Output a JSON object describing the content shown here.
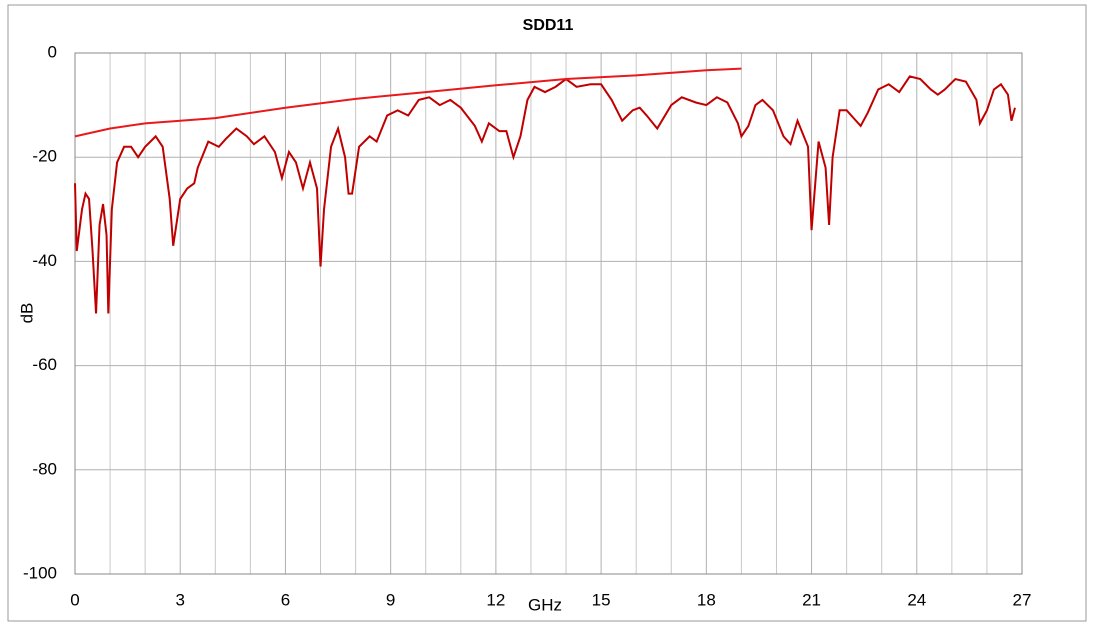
{
  "chart_data": {
    "type": "line",
    "title": "SDD11",
    "xlabel": "GHz",
    "ylabel": "dB",
    "xlim": [
      0,
      27
    ],
    "xticks": [
      0,
      3,
      6,
      9,
      12,
      15,
      18,
      21,
      24,
      27
    ],
    "ylim": [
      -100,
      0
    ],
    "yticks": [
      -100,
      -80,
      -60,
      -40,
      -20,
      0
    ],
    "grid": true,
    "series": [
      {
        "color": "#c00000",
        "x": [
          0,
          0.05,
          0.2,
          0.3,
          0.4,
          0.5,
          0.6,
          0.7,
          0.8,
          0.9,
          0.95,
          1.05,
          1.2,
          1.4,
          1.6,
          1.8,
          2.0,
          2.3,
          2.5,
          2.7,
          2.8,
          3.0,
          3.2,
          3.4,
          3.5,
          3.8,
          4.1,
          4.3,
          4.6,
          4.9,
          5.1,
          5.4,
          5.7,
          5.9,
          6.1,
          6.3,
          6.5,
          6.7,
          6.9,
          7.0,
          7.1,
          7.3,
          7.5,
          7.7,
          7.8,
          7.9,
          8.1,
          8.4,
          8.6,
          8.9,
          9.2,
          9.5,
          9.8,
          10.1,
          10.4,
          10.7,
          11.0,
          11.4,
          11.6,
          11.8,
          12.1,
          12.3,
          12.5,
          12.7,
          12.9,
          13.1,
          13.4,
          13.7,
          14.0,
          14.3,
          14.7,
          15.0,
          15.3,
          15.6,
          15.9,
          16.1,
          16.3,
          16.6,
          17.0,
          17.3,
          17.7,
          18.0,
          18.3,
          18.6,
          18.9,
          19.0,
          19.2,
          19.4,
          19.6,
          19.9,
          20.2,
          20.4,
          20.6,
          20.9,
          21.0,
          21.2,
          21.4,
          21.5,
          21.6,
          21.8,
          22.0,
          22.2,
          22.4,
          22.6,
          22.9,
          23.2,
          23.5,
          23.8,
          24.1,
          24.4,
          24.6,
          24.8,
          25.1,
          25.4,
          25.7,
          25.8,
          26.0,
          26.2,
          26.4,
          26.6,
          26.7,
          26.8
        ],
        "values": [
          -25,
          -38,
          -30,
          -27,
          -28,
          -38,
          -50,
          -33,
          -29,
          -35,
          -50,
          -30,
          -21,
          -18,
          -18,
          -20,
          -18,
          -16,
          -18,
          -28,
          -37,
          -28,
          -26,
          -25,
          -22,
          -17,
          -18,
          -16.5,
          -14.5,
          -16,
          -17.5,
          -16,
          -19,
          -24,
          -19,
          -21,
          -26,
          -21,
          -26,
          -41,
          -30,
          -18,
          -14.5,
          -20,
          -27,
          -27,
          -18,
          -16,
          -17,
          -12,
          -11,
          -12,
          -9,
          -8.5,
          -10,
          -9,
          -10.5,
          -14,
          -17,
          -13.5,
          -15,
          -15,
          -20,
          -16,
          -9,
          -6.5,
          -7.5,
          -6.5,
          -5,
          -6.5,
          -6,
          -6,
          -9,
          -13,
          -11,
          -10.5,
          -12,
          -14.5,
          -10,
          -8.5,
          -9.5,
          -10,
          -8.5,
          -9.5,
          -13.5,
          -16,
          -14,
          -10,
          -9,
          -11,
          -16,
          -17.5,
          -13,
          -18,
          -34,
          -17,
          -22,
          -33,
          -20,
          -11,
          -11,
          -12.5,
          -14,
          -11.5,
          -7,
          -6,
          -7.5,
          -4.5,
          -5,
          -7,
          -8,
          -7,
          -5,
          -5.5,
          -9,
          -13.5,
          -11,
          -7,
          -6,
          -8,
          -13,
          -10.5
        ]
      },
      {
        "color": "#e8191b",
        "x": [
          0,
          1,
          2,
          3,
          4,
          6,
          8,
          10,
          12,
          14,
          16,
          18,
          19
        ],
        "values": [
          -16,
          -14.5,
          -13.5,
          -13,
          -12.5,
          -10.5,
          -8.8,
          -7.5,
          -6.2,
          -5,
          -4.3,
          -3.3,
          -3
        ]
      }
    ]
  }
}
